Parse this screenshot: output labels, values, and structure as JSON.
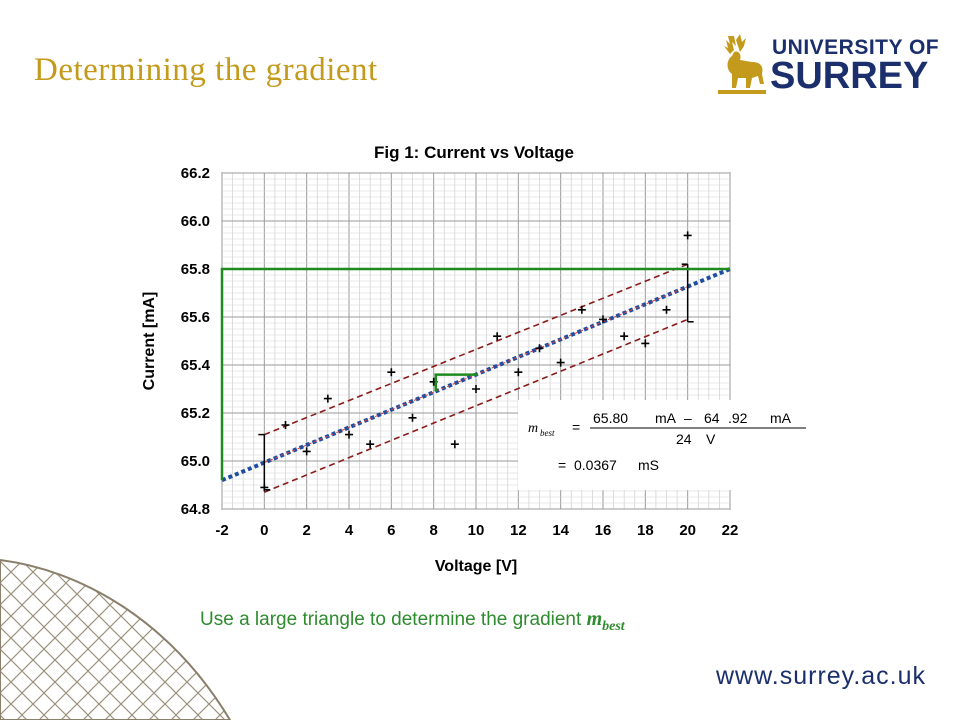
{
  "slide": {
    "title": "Determining the gradient",
    "logo_line1": "UNIVERSITY OF",
    "logo_line2": "SURREY",
    "url": "www.surrey.ac.uk",
    "caption_text": "Use a large triangle to determine the gradient ",
    "caption_m": "m",
    "caption_sub": "best"
  },
  "colors": {
    "title": "#c49a1c",
    "brand_navy": "#1a2f6b",
    "green": "#1f8a1f",
    "best_fit_blue": "#1f4ea0",
    "dashed_red": "#8b1a1a"
  },
  "annotation": {
    "m_label": "m",
    "m_sub": "best",
    "eq1": "=",
    "numerator_a": "65.80",
    "unit_a": "mA",
    "minus": "–",
    "numerator_b": "64",
    "numerator_b2": ".92",
    "unit_b": "mA",
    "denominator": "24",
    "unit_c": "V",
    "eq2": "=",
    "result": "0.0367",
    "unit_d": "mS"
  },
  "chart_data": {
    "type": "scatter",
    "title": "Fig 1: Current vs Voltage",
    "xlabel": "Voltage [V]",
    "ylabel": "Current [mA]",
    "xlim": [
      -2,
      22
    ],
    "ylim": [
      64.8,
      66.2
    ],
    "x_ticks": [
      "-2",
      "0",
      "2",
      "4",
      "6",
      "8",
      "10",
      "12",
      "14",
      "16",
      "18",
      "20",
      "22"
    ],
    "y_ticks": [
      "64.8",
      "65.0",
      "65.2",
      "65.4",
      "65.6",
      "65.8",
      "66.0",
      "66.2"
    ],
    "grid": true,
    "points": [
      {
        "x": 0,
        "y": 64.89
      },
      {
        "x": 1,
        "y": 65.15
      },
      {
        "x": 2,
        "y": 65.04
      },
      {
        "x": 3,
        "y": 65.26
      },
      {
        "x": 4,
        "y": 65.11
      },
      {
        "x": 5,
        "y": 65.07
      },
      {
        "x": 6,
        "y": 65.37
      },
      {
        "x": 7,
        "y": 65.18
      },
      {
        "x": 8,
        "y": 65.33
      },
      {
        "x": 9,
        "y": 65.07
      },
      {
        "x": 10,
        "y": 65.3
      },
      {
        "x": 11,
        "y": 65.52
      },
      {
        "x": 12,
        "y": 65.37
      },
      {
        "x": 13,
        "y": 65.47
      },
      {
        "x": 14,
        "y": 65.41
      },
      {
        "x": 15,
        "y": 65.63
      },
      {
        "x": 16,
        "y": 65.59
      },
      {
        "x": 17,
        "y": 65.52
      },
      {
        "x": 18,
        "y": 65.49
      },
      {
        "x": 19,
        "y": 65.63
      },
      {
        "x": 20,
        "y": 65.94
      }
    ],
    "best_fit": {
      "x1": -2,
      "y1": 64.92,
      "x2": 22,
      "y2": 65.8
    },
    "worst_fits": [
      {
        "x1": 0,
        "y1": 65.11,
        "x2": 20,
        "y2": 65.82
      },
      {
        "x1": 0,
        "y1": 64.87,
        "x2": 20,
        "y2": 65.59
      }
    ],
    "error_bars": [
      {
        "x": 0,
        "y_low": 64.88,
        "y_high": 65.11
      },
      {
        "x": 20,
        "y_low": 65.58,
        "y_high": 65.82
      }
    ],
    "large_triangle": {
      "x1": -2,
      "y1": 64.92,
      "x2": 22,
      "y2": 65.8
    },
    "small_triangle": {
      "x1": 8.1,
      "y1": 65.29,
      "x2": 10.1,
      "y2": 65.36
    }
  }
}
